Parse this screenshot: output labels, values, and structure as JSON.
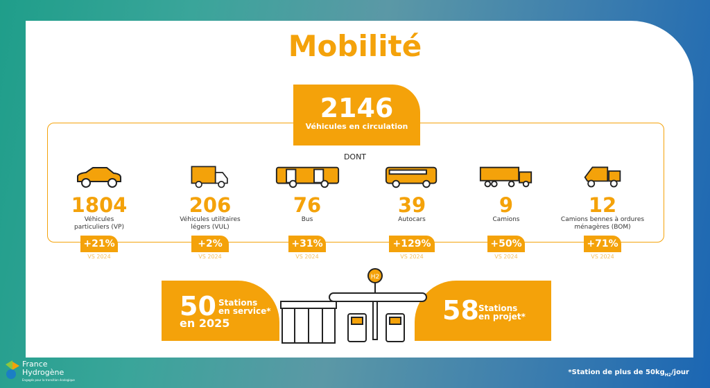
{
  "title": "Mobilité",
  "total": {
    "value": "2146",
    "label": "Véhicules en circulation"
  },
  "dont": "DONT",
  "categories": [
    {
      "value": "1804",
      "label1": "Véhicules",
      "label2": "particuliers (VP)",
      "change": "+21%",
      "vs": "VS 2024",
      "icon": "car-icon"
    },
    {
      "value": "206",
      "label1": "Véhicules utilitaires",
      "label2": "légers (VUL)",
      "change": "+2%",
      "vs": "VS 2024",
      "icon": "van-icon"
    },
    {
      "value": "76",
      "label1": "Bus",
      "label2": "",
      "change": "+31%",
      "vs": "VS 2024",
      "icon": "bus-icon"
    },
    {
      "value": "39",
      "label1": "Autocars",
      "label2": "",
      "change": "+129%",
      "vs": "VS 2024",
      "icon": "coach-icon"
    },
    {
      "value": "9",
      "label1": "Camions",
      "label2": "",
      "change": "+50%",
      "vs": "VS 2024",
      "icon": "truck-icon"
    },
    {
      "value": "12",
      "label1": "Camions bennes à ordures",
      "label2": "ménagères (BOM)",
      "change": "+71%",
      "vs": "VS 2024",
      "icon": "garbage-truck-icon"
    }
  ],
  "stations_service": {
    "value": "50",
    "line1": "Stations",
    "line2": "en service*",
    "year": "en 2025"
  },
  "stations_projet": {
    "value": "58",
    "line1": "Stations",
    "line2": "en projet*"
  },
  "station_sign": "H2",
  "logo": {
    "line1": "France",
    "line2": "Hydrogène",
    "tagline": "Engagés pour la transition écologique"
  },
  "footnote": {
    "prefix": "*Station de plus de 50kg",
    "sub": "H2",
    "suffix": "/jour"
  },
  "colors": {
    "accent": "#f4a20a"
  }
}
